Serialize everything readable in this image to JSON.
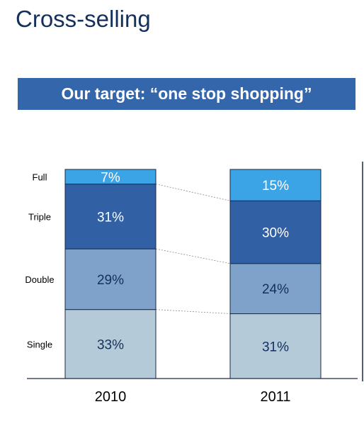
{
  "page": {
    "title": "Cross-selling",
    "banner": "Our target: “one stop shopping”"
  },
  "colors": {
    "Single": "#b4cad9",
    "Double": "#7fa2cb",
    "Triple": "#3160a5",
    "Full": "#3aa4e6",
    "title": "#14305c",
    "banner": "#3366aa",
    "dark_text": "#14305c",
    "light_text": "#ffffff"
  },
  "chart_data": {
    "type": "bar",
    "stacked": true,
    "categories": [
      "2010",
      "2011"
    ],
    "series": [
      {
        "name": "Single",
        "values": [
          33,
          31
        ],
        "labels": [
          "33%",
          "31%"
        ]
      },
      {
        "name": "Double",
        "values": [
          29,
          24
        ],
        "labels": [
          "29%",
          "24%"
        ]
      },
      {
        "name": "Triple",
        "values": [
          31,
          30
        ],
        "labels": [
          "31%",
          "30%"
        ]
      },
      {
        "name": "Full",
        "values": [
          7,
          15
        ],
        "labels": [
          "7%",
          "15%"
        ]
      }
    ],
    "ylim": [
      0,
      100
    ],
    "grid": false,
    "legend": "row labels left of first bar",
    "connector_lines": true
  }
}
